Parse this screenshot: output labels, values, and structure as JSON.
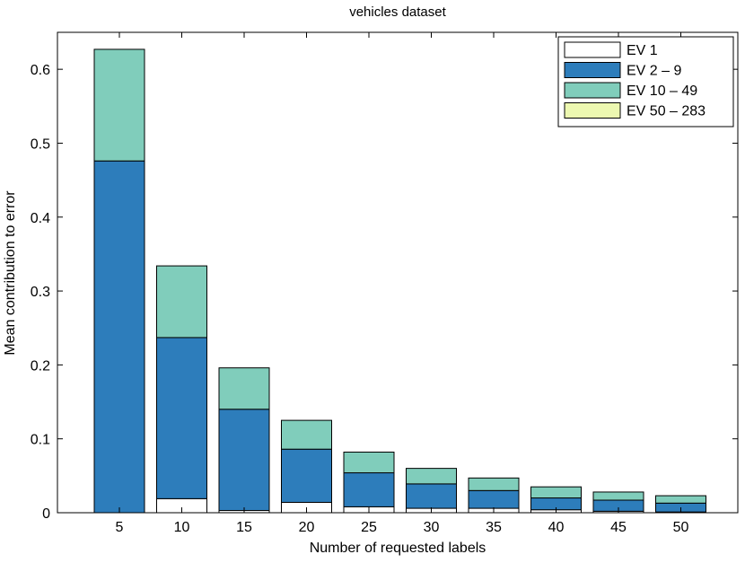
{
  "chart_data": {
    "type": "bar",
    "stacked": true,
    "title": "vehicles dataset",
    "xlabel": "Number of requested labels",
    "ylabel": "Mean contribution to error",
    "categories": [
      "5",
      "10",
      "15",
      "20",
      "25",
      "30",
      "35",
      "40",
      "45",
      "50"
    ],
    "series": [
      {
        "name": "EV 1",
        "color": "#ffffff",
        "values": [
          0.0,
          0.019,
          0.003,
          0.014,
          0.008,
          0.006,
          0.006,
          0.004,
          0.002,
          0.001
        ]
      },
      {
        "name": "EV 2 – 9",
        "color": "#2d7dbb",
        "values": [
          0.476,
          0.218,
          0.137,
          0.072,
          0.046,
          0.033,
          0.024,
          0.016,
          0.015,
          0.012
        ]
      },
      {
        "name": "EV 10 – 49",
        "color": "#80cdbb",
        "values": [
          0.151,
          0.097,
          0.056,
          0.039,
          0.028,
          0.021,
          0.017,
          0.015,
          0.011,
          0.01
        ]
      },
      {
        "name": "EV 50 – 283",
        "color": "#edf8b1",
        "values": [
          0,
          0,
          0,
          0,
          0,
          0,
          0,
          0,
          0,
          0
        ]
      }
    ],
    "ylim": [
      0,
      0.65
    ],
    "yticks": [
      0,
      0.1,
      0.2,
      0.3,
      0.4,
      0.5,
      0.6
    ],
    "ytick_labels": [
      "0",
      "0.1",
      "0.2",
      "0.3",
      "0.4",
      "0.5",
      "0.6"
    ],
    "legend_position": "top-right",
    "grid": false
  }
}
